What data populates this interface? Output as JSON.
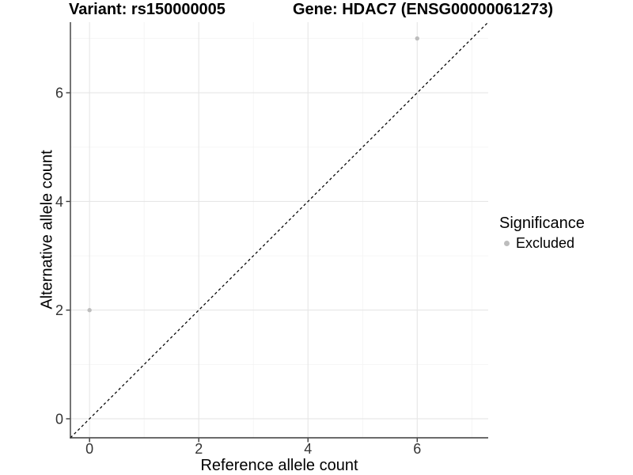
{
  "chart_data": {
    "type": "scatter",
    "title_left": "Variant: rs150000005",
    "title_right": "Gene: HDAC7 (ENSG00000061273)",
    "xlabel": "Reference allele count",
    "ylabel": "Alternative allele count",
    "x_ticks": [
      0,
      2,
      4,
      6
    ],
    "y_ticks": [
      0,
      2,
      4,
      6
    ],
    "x_minor": [
      1,
      3,
      5,
      7
    ],
    "y_minor": [
      1,
      3,
      5,
      7
    ],
    "xlim": [
      -0.35,
      7.3
    ],
    "ylim": [
      -0.35,
      7.3
    ],
    "grid": "major-and-minor",
    "reference_line": {
      "slope": 1,
      "intercept": 0,
      "style": "dashed",
      "color": "#000000"
    },
    "series": [
      {
        "name": "Excluded",
        "color": "#bdbdbd",
        "points": [
          {
            "x": 0,
            "y": 2
          },
          {
            "x": 6,
            "y": 7
          }
        ]
      }
    ],
    "legend": {
      "title": "Significance",
      "position": "right",
      "items": [
        {
          "label": "Excluded",
          "color": "#bdbdbd"
        }
      ]
    },
    "colors": {
      "background": "#ffffff",
      "grid_major": "#e6e6e6",
      "grid_minor": "#f3f3f3",
      "axis_line": "#3a3a3a",
      "tick_text": "#333333",
      "point": "#bdbdbd"
    }
  }
}
